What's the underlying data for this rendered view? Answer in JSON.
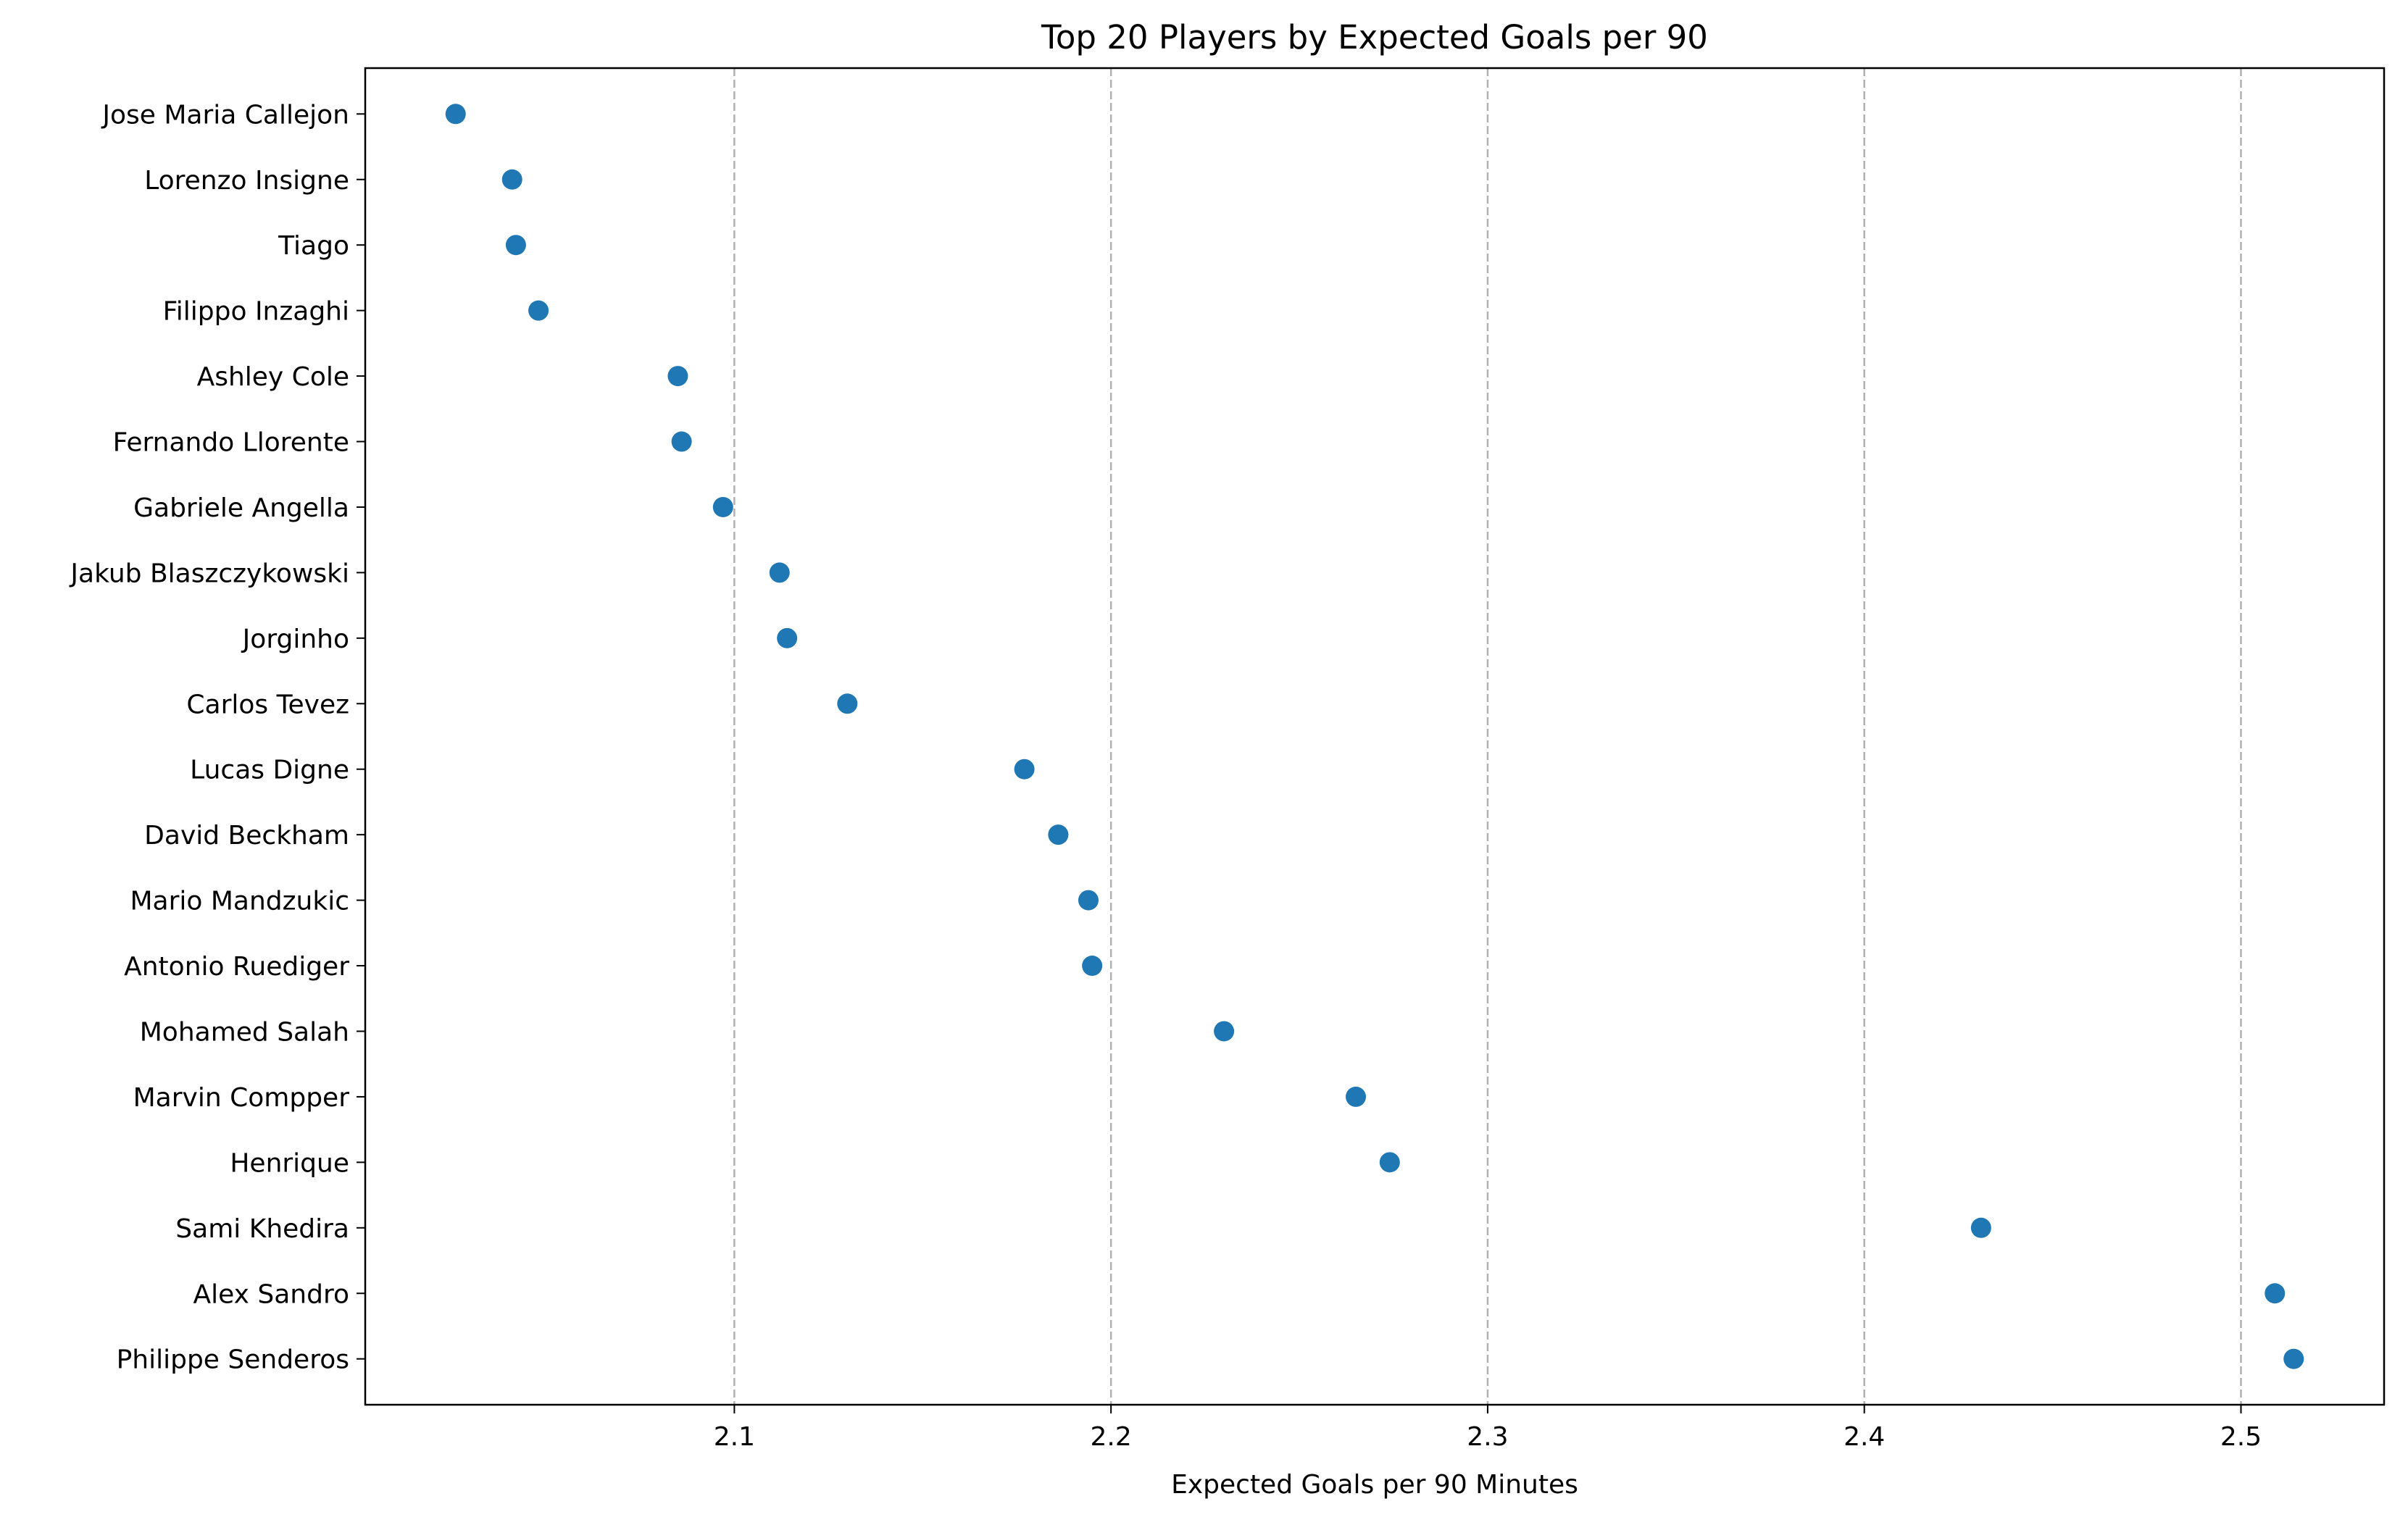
{
  "chart_data": {
    "type": "scatter",
    "title": "Top 20 Players by Expected Goals per 90",
    "xlabel": "Expected Goals per 90 Minutes",
    "ylabel": "",
    "xlim": [
      2.002,
      2.538
    ],
    "x_ticks": [
      "2.1",
      "2.2",
      "2.3",
      "2.4",
      "2.5"
    ],
    "x_tick_values": [
      2.1,
      2.2,
      2.3,
      2.4,
      2.5
    ],
    "grid": "x-dashed",
    "marker_color": "#1f77b4",
    "categories": [
      "Jose Maria Callejon",
      "Lorenzo Insigne",
      "Tiago",
      "Filippo Inzaghi",
      "Ashley Cole",
      "Fernando Llorente",
      "Gabriele Angella",
      "Jakub Blaszczykowski",
      "Jorginho",
      "Carlos Tevez",
      "Lucas Digne",
      "David Beckham",
      "Mario Mandzukic",
      "Antonio Ruediger",
      "Mohamed Salah",
      "Marvin Compper",
      "Henrique",
      "Sami Khedira",
      "Alex Sandro",
      "Philippe Senderos"
    ],
    "values": [
      2.026,
      2.041,
      2.042,
      2.048,
      2.085,
      2.086,
      2.097,
      2.112,
      2.114,
      2.13,
      2.177,
      2.186,
      2.194,
      2.195,
      2.23,
      2.265,
      2.274,
      2.431,
      2.509,
      2.514
    ]
  }
}
